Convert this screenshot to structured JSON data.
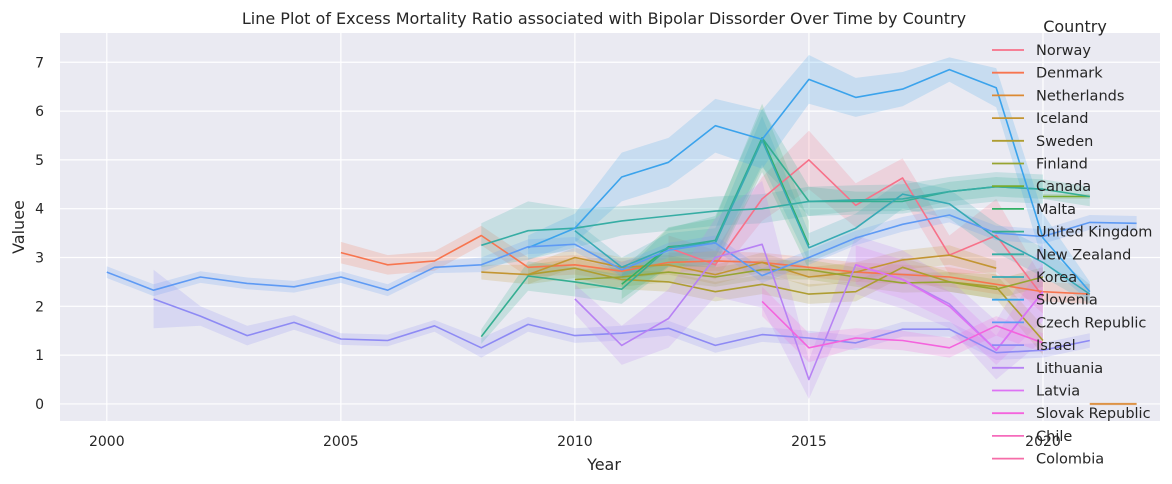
{
  "chart_data": {
    "type": "line",
    "title": "Line Plot of Excess Mortality Ratio associated with Bipolar Dissorder Over Time by Country",
    "xlabel": "Year",
    "ylabel": "Valuee",
    "xlim": [
      1999,
      2022.5
    ],
    "ylim": [
      -0.35,
      7.6
    ],
    "xticks": [
      2000,
      2005,
      2010,
      2015,
      2020
    ],
    "yticks": [
      0,
      1,
      2,
      3,
      4,
      5,
      6,
      7
    ],
    "grid": true,
    "background": "#eaeaf2",
    "legend": {
      "title": "Country",
      "placement": "top-right"
    },
    "series": [
      {
        "name": "Norway",
        "color": "#f77189",
        "x": [
          2012,
          2013,
          2014,
          2015,
          2016,
          2017,
          2018,
          2019,
          2020
        ],
        "y": [
          3.2,
          2.85,
          4.2,
          5.0,
          4.07,
          4.63,
          3.05,
          3.45,
          2.2
        ],
        "band": [
          0.25,
          0.3,
          0.45,
          0.6,
          0.45,
          0.4,
          0.4,
          0.75,
          0.35
        ]
      },
      {
        "name": "Denmark",
        "color": "#f7754f",
        "x": [
          2005,
          2006,
          2007,
          2008,
          2009,
          2010,
          2011,
          2012,
          2013,
          2014,
          2015,
          2016,
          2017,
          2018,
          2019,
          2020,
          2021
        ],
        "y": [
          3.1,
          2.85,
          2.93,
          3.45,
          2.8,
          2.85,
          2.72,
          2.9,
          2.93,
          2.9,
          2.8,
          2.7,
          2.65,
          2.6,
          2.45,
          2.3,
          2.25
        ],
        "band": [
          0.22,
          0.2,
          0.2,
          0.2,
          0.2,
          0.2,
          0.2,
          0.2,
          0.2,
          0.2,
          0.2,
          0.2,
          0.2,
          0.2,
          0.2,
          0.2,
          0.2
        ]
      },
      {
        "name": "Netherlands",
        "color": "#dc8932",
        "x": [
          2021,
          2022
        ],
        "y": [
          0.0,
          0.0
        ],
        "band": [
          0.03,
          0.03
        ]
      },
      {
        "name": "Iceland",
        "color": "#c39532",
        "x": [
          2008,
          2009,
          2010,
          2011,
          2012,
          2013,
          2014,
          2015,
          2016,
          2017,
          2018,
          2019
        ],
        "y": [
          2.7,
          2.65,
          3.0,
          2.8,
          2.85,
          2.65,
          2.9,
          2.6,
          2.7,
          2.95,
          3.05,
          2.78
        ],
        "band": [
          0.15,
          0.2,
          0.2,
          0.2,
          0.2,
          0.2,
          0.2,
          0.2,
          0.2,
          0.2,
          0.2,
          0.15
        ]
      },
      {
        "name": "Sweden",
        "color": "#ae9d31",
        "x": [
          2009,
          2010,
          2011,
          2012,
          2013,
          2014,
          2015,
          2016,
          2017,
          2018,
          2019,
          2020
        ],
        "y": [
          2.65,
          2.78,
          2.55,
          2.5,
          2.3,
          2.45,
          2.25,
          2.3,
          2.8,
          2.5,
          2.4,
          1.3
        ],
        "band": [
          0.2,
          0.2,
          0.2,
          0.2,
          0.2,
          0.2,
          0.2,
          0.2,
          0.2,
          0.2,
          0.25,
          0.3
        ]
      },
      {
        "name": "Finland",
        "color": "#97a431",
        "x": [
          2010,
          2011,
          2012,
          2013,
          2014,
          2015,
          2016,
          2017,
          2018,
          2019,
          2020
        ],
        "y": [
          2.55,
          2.6,
          2.7,
          2.6,
          2.75,
          2.75,
          2.6,
          2.48,
          2.5,
          2.35,
          2.6
        ],
        "band": [
          0.2,
          0.2,
          0.2,
          0.2,
          0.2,
          0.2,
          0.2,
          0.2,
          0.2,
          0.2,
          0.2
        ]
      },
      {
        "name": "Canada",
        "color": "#77ab31",
        "x": [
          2020,
          2021
        ],
        "y": [
          4.25,
          4.25
        ],
        "band": [
          0.05,
          0.05
        ]
      },
      {
        "name": "Malta",
        "color": "#32b166",
        "x": [
          2011,
          2012,
          2013,
          2014,
          2015
        ],
        "y": [
          2.45,
          3.22,
          3.3,
          5.45,
          3.25
        ],
        "band": [
          0.3,
          0.4,
          0.5,
          0.7,
          0.5
        ]
      },
      {
        "name": "United Kingdom",
        "color": "#34ae91",
        "x": [
          2008,
          2009,
          2010,
          2011,
          2012,
          2013,
          2014,
          2015,
          2016,
          2017,
          2018,
          2019,
          2020,
          2021
        ],
        "y": [
          1.38,
          2.62,
          2.5,
          2.35,
          3.2,
          3.35,
          5.45,
          4.15,
          4.15,
          4.15,
          4.35,
          4.45,
          4.4,
          4.25
        ],
        "band": [
          0.15,
          0.3,
          0.3,
          0.3,
          0.4,
          0.5,
          0.6,
          0.3,
          0.2,
          0.2,
          0.2,
          0.2,
          0.2,
          0.2
        ]
      },
      {
        "name": "New Zealand",
        "color": "#36ada4",
        "x": [
          2008,
          2009,
          2010,
          2011,
          2012,
          2013,
          2014,
          2015,
          2016,
          2017,
          2018,
          2019,
          2020
        ],
        "y": [
          3.25,
          3.55,
          3.6,
          3.75,
          3.85,
          3.95,
          4.0,
          4.15,
          4.18,
          4.2,
          4.35,
          4.45,
          4.4
        ],
        "band": [
          0.45,
          0.6,
          0.4,
          0.3,
          0.3,
          0.3,
          0.3,
          0.3,
          0.3,
          0.3,
          0.3,
          0.3,
          0.3
        ]
      },
      {
        "name": "Korea",
        "color": "#38aab5",
        "x": [
          2010,
          2011,
          2012,
          2013,
          2014,
          2015,
          2016,
          2017,
          2018,
          2019,
          2020,
          2021
        ],
        "y": [
          3.55,
          2.8,
          3.2,
          3.3,
          5.4,
          3.2,
          3.6,
          4.3,
          4.1,
          3.4,
          2.9,
          2.25
        ],
        "band": [
          0.2,
          0.2,
          0.3,
          0.3,
          0.5,
          0.3,
          0.3,
          0.3,
          0.3,
          0.3,
          0.3,
          0.2
        ]
      },
      {
        "name": "Slovenia",
        "color": "#3ba3ec",
        "x": [
          2009,
          2010,
          2011,
          2012,
          2013,
          2014,
          2015,
          2016,
          2017,
          2018,
          2019,
          2020,
          2021
        ],
        "y": [
          3.2,
          3.6,
          4.65,
          4.95,
          5.7,
          5.42,
          6.65,
          6.28,
          6.45,
          6.85,
          6.48,
          3.4,
          2.3
        ],
        "band": [
          0.25,
          0.3,
          0.5,
          0.5,
          0.55,
          0.6,
          0.5,
          0.4,
          0.35,
          0.25,
          0.4,
          0.5,
          0.2
        ]
      },
      {
        "name": "Czech Republic",
        "color": "#5e9af4",
        "x": [
          2000,
          2001,
          2002,
          2003,
          2004,
          2005,
          2006,
          2007,
          2008,
          2009,
          2010,
          2011,
          2012,
          2013,
          2014,
          2015,
          2016,
          2017,
          2018,
          2019,
          2020,
          2021,
          2022
        ],
        "y": [
          2.7,
          2.33,
          2.6,
          2.47,
          2.4,
          2.6,
          2.33,
          2.8,
          2.85,
          3.22,
          3.27,
          2.75,
          3.15,
          3.3,
          2.63,
          3.0,
          3.4,
          3.68,
          3.87,
          3.5,
          3.43,
          3.72,
          3.7
        ],
        "band": [
          0.12,
          0.12,
          0.12,
          0.12,
          0.12,
          0.12,
          0.12,
          0.12,
          0.15,
          0.15,
          0.15,
          0.15,
          0.15,
          0.15,
          0.15,
          0.15,
          0.15,
          0.15,
          0.15,
          0.15,
          0.15,
          0.15,
          0.15
        ]
      },
      {
        "name": "Israel",
        "color": "#8e8af4",
        "x": [
          2001,
          2002,
          2003,
          2004,
          2005,
          2006,
          2007,
          2008,
          2009,
          2010,
          2011,
          2012,
          2013,
          2014,
          2015,
          2016,
          2017,
          2018,
          2019,
          2020,
          2021
        ],
        "y": [
          2.15,
          1.8,
          1.4,
          1.67,
          1.33,
          1.3,
          1.6,
          1.15,
          1.63,
          1.4,
          1.45,
          1.55,
          1.2,
          1.42,
          1.35,
          1.25,
          1.53,
          1.53,
          1.05,
          1.1,
          1.3
        ],
        "band": [
          0.6,
          0.2,
          0.2,
          0.15,
          0.12,
          0.12,
          0.12,
          0.2,
          0.15,
          0.15,
          0.15,
          0.15,
          0.15,
          0.15,
          0.15,
          0.15,
          0.15,
          0.15,
          0.15,
          0.15,
          0.15
        ]
      },
      {
        "name": "Lithuania",
        "color": "#b782f4",
        "x": [
          2010,
          2011,
          2012,
          2013,
          2014,
          2015,
          2016,
          2017,
          2018,
          2019,
          2020
        ],
        "y": [
          2.15,
          1.2,
          1.75,
          3.0,
          3.27,
          0.5,
          2.85,
          2.55,
          2.05,
          1.1,
          2.3
        ],
        "band": [
          0.3,
          0.4,
          0.6,
          0.8,
          1.3,
          0.4,
          0.6,
          0.6,
          0.5,
          0.6,
          1.0
        ]
      },
      {
        "name": "Latvia",
        "color": "#dd72f4",
        "x": [
          2016,
          2017,
          2018,
          2019,
          2020
        ],
        "y": [
          2.85,
          2.55,
          2.0,
          1.1,
          2.3
        ],
        "band": [
          0.4,
          0.4,
          0.3,
          0.3,
          0.6
        ]
      },
      {
        "name": "Slovak Republic",
        "color": "#f463dd",
        "x": [
          2014,
          2015,
          2016,
          2017,
          2018,
          2019,
          2020
        ],
        "y": [
          2.1,
          1.15,
          1.35,
          1.3,
          1.15,
          1.6,
          1.25
        ],
        "band": [
          0.3,
          0.3,
          0.2,
          0.2,
          0.2,
          0.2,
          0.2
        ]
      },
      {
        "name": "Chile",
        "color": "#f56bbc",
        "x": [],
        "y": [],
        "band": []
      },
      {
        "name": "Colombia",
        "color": "#f66da8",
        "x": [],
        "y": [],
        "band": []
      }
    ]
  }
}
